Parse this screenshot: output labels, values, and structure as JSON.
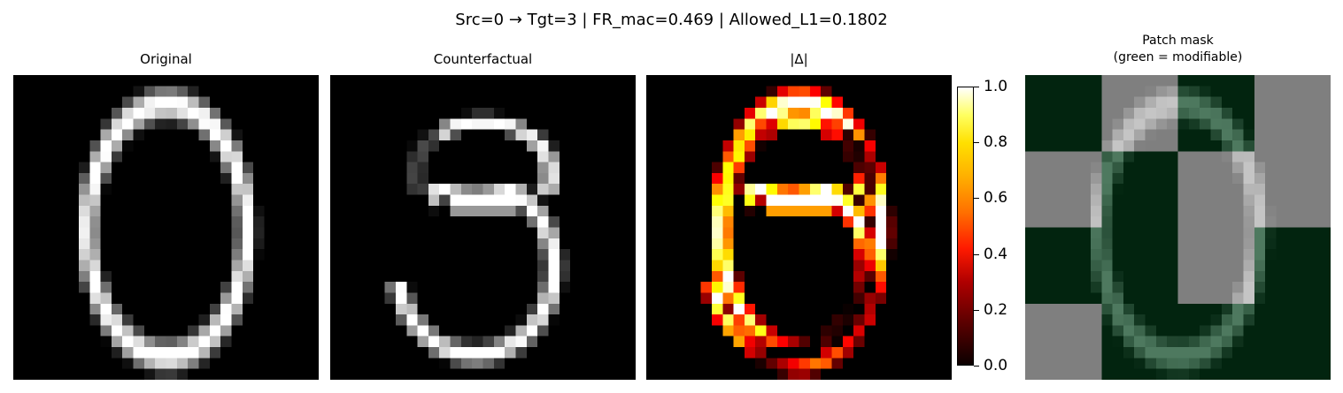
{
  "suptitle": "Src=0 → Tgt=3 | FR_mac=0.469 | Allowed_L1=0.1802",
  "panels": [
    {
      "title": "Original"
    },
    {
      "title": "Counterfactual"
    },
    {
      "title": "|Δ|"
    },
    {
      "title": "Patch mask\n(green = modifiable)"
    }
  ],
  "colorbar": {
    "ticks": [
      "0.0",
      "0.2",
      "0.4",
      "0.6",
      "0.8",
      "1.0"
    ],
    "colormap": "hot"
  },
  "mask_grid": [
    [
      1,
      0,
      1,
      0
    ],
    [
      0,
      1,
      0,
      0
    ],
    [
      1,
      1,
      0,
      1
    ],
    [
      0,
      1,
      1,
      1
    ]
  ],
  "colors": {
    "mask_green": "#02240f",
    "mask_gray": "#7f7f7f"
  }
}
